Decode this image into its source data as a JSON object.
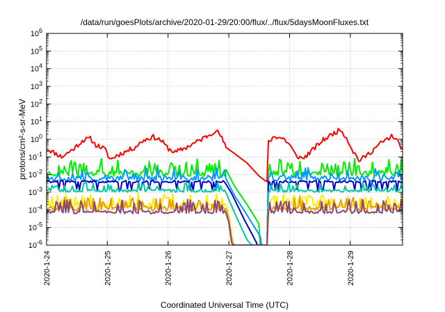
{
  "chart_data": {
    "type": "line",
    "title": "/data/run/goesPlots/archive/2020-01-29/20:00/flux/../flux/5daysMoonFluxes.txt",
    "xlabel": "Coordinated Universal Time (UTC)",
    "ylabel": "protons/cm²-s-sr-MeV",
    "yscale": "log",
    "ylim": [
      1e-06,
      1000000.0
    ],
    "xlim_days": [
      0,
      5.86
    ],
    "x_start_date": "2020-01-24",
    "grid": true,
    "legend": "none",
    "x_tick_labels": [
      "2020-1-24",
      "2020-1-25",
      "2020-1-26",
      "2020-1-27",
      "2020-1-28",
      "2020-1-29"
    ],
    "x_tick_days": [
      0,
      1,
      2,
      3,
      4,
      5
    ],
    "y_tick_exponents": [
      -6,
      -5,
      -4,
      -3,
      -2,
      -1,
      0,
      1,
      2,
      3,
      4,
      5,
      6
    ],
    "series": [
      {
        "color": "#ff0000",
        "pattern": "trend",
        "seed": 11,
        "noise": 0.28,
        "points": [
          [
            0,
            0.3
          ],
          [
            0.25,
            0.1
          ],
          [
            0.45,
            0.3
          ],
          [
            0.6,
            0.9
          ],
          [
            0.72,
            1.1
          ],
          [
            0.8,
            0.5
          ],
          [
            0.95,
            0.3
          ],
          [
            1.05,
            0.07
          ],
          [
            1.15,
            0.12
          ],
          [
            1.3,
            0.2
          ],
          [
            1.45,
            0.35
          ],
          [
            1.6,
            0.9
          ],
          [
            1.75,
            1.4
          ],
          [
            1.88,
            0.9
          ],
          [
            2.0,
            0.3
          ],
          [
            2.12,
            0.18
          ],
          [
            2.3,
            0.35
          ],
          [
            2.5,
            0.8
          ],
          [
            2.65,
            1.6
          ],
          [
            2.78,
            3.2
          ],
          [
            2.85,
            2.0
          ],
          [
            2.95,
            0.35
          ],
          [
            3.05,
            0.2
          ],
          [
            3.3,
            0.045
          ],
          [
            3.5,
            0.008
          ],
          [
            3.62,
            0.004
          ],
          [
            3.64,
            0.004
          ],
          [
            3.65,
            0.7
          ],
          [
            3.75,
            1.5
          ],
          [
            3.9,
            1.1
          ],
          [
            4.0,
            0.5
          ],
          [
            4.1,
            0.12
          ],
          [
            4.22,
            0.08
          ],
          [
            4.35,
            0.2
          ],
          [
            4.55,
            0.9
          ],
          [
            4.75,
            2.5
          ],
          [
            4.85,
            3.5
          ],
          [
            4.95,
            1.0
          ],
          [
            5.05,
            0.2
          ],
          [
            5.15,
            0.06
          ],
          [
            5.3,
            0.15
          ],
          [
            5.5,
            0.6
          ],
          [
            5.7,
            1.6
          ],
          [
            5.86,
            0.3
          ]
        ]
      },
      {
        "color": "#00ee00",
        "pattern": "spiky",
        "seed": 23,
        "base": 0.012,
        "spike_mult": 3.5,
        "noise": 0.35,
        "decay": [
          [
            2.95,
            0.02
          ],
          [
            3.1,
            0.002
          ],
          [
            3.3,
            0.0002
          ],
          [
            3.5,
            1.5e-05
          ]
        ],
        "recover_at": 3.65
      },
      {
        "color": "#0099ff",
        "pattern": "spiky",
        "seed": 37,
        "base": 0.006,
        "spike_mult": 2.5,
        "noise": 0.3,
        "decay": [
          [
            2.95,
            0.006
          ],
          [
            3.1,
            0.0006
          ],
          [
            3.3,
            5e-05
          ],
          [
            3.52,
            3e-06
          ]
        ],
        "recover_at": 3.65
      },
      {
        "color": "#0000cc",
        "pattern": "flat",
        "seed": 41,
        "base": 0.004,
        "dip_mult": 0.35,
        "noise": 0.12,
        "decay": [
          [
            2.95,
            0.003
          ],
          [
            3.05,
            0.0008
          ],
          [
            3.25,
            3e-05
          ],
          [
            3.45,
            1.5e-06
          ]
        ],
        "recover_at": 3.65
      },
      {
        "color": "#00c8a0",
        "pattern": "spiky",
        "seed": 53,
        "base": 0.0012,
        "spike_mult": 2.0,
        "noise": 0.15,
        "decay": [
          [
            2.95,
            0.001
          ],
          [
            3.1,
            6e-05
          ],
          [
            3.3,
            2e-06
          ],
          [
            3.4,
            8e-07
          ]
        ],
        "recover_at": 3.65
      },
      {
        "color": "#ffee00",
        "pattern": "spiky",
        "seed": 67,
        "base": 0.00018,
        "spike_mult": 3.0,
        "noise": 0.25,
        "decay": [
          [
            2.95,
            0.00018
          ],
          [
            3.0,
            5e-05
          ],
          [
            3.05,
            3e-06
          ],
          [
            3.1,
            5e-07
          ]
        ],
        "recover_at": 3.65
      },
      {
        "color": "#e8a000",
        "pattern": "spiky",
        "seed": 71,
        "base": 0.00012,
        "spike_mult": 3.0,
        "noise": 0.25,
        "decay": [
          [
            2.95,
            0.00012
          ],
          [
            3.0,
            3e-05
          ],
          [
            3.05,
            2e-06
          ],
          [
            3.1,
            5e-07
          ]
        ],
        "recover_at": 3.65
      },
      {
        "color": "#884477",
        "pattern": "spiky",
        "seed": 83,
        "base": 7.5e-05,
        "spike_mult": 3.5,
        "noise": 0.18,
        "decay": [
          [
            2.95,
            7e-05
          ],
          [
            3.0,
            2e-05
          ],
          [
            3.05,
            1e-06
          ],
          [
            3.1,
            5e-07
          ]
        ],
        "recover_at": 3.65
      }
    ]
  }
}
